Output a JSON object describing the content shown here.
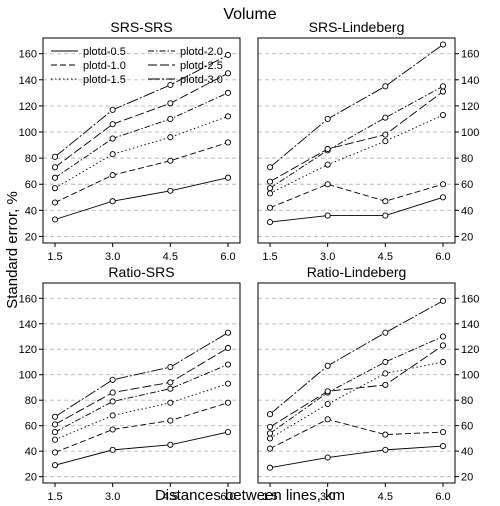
{
  "figure": {
    "title": "Volume",
    "ylabel": "Standard error, %",
    "xlabel": "Distances between lines, km"
  },
  "chart_data": [
    {
      "type": "line",
      "title": "SRS-SRS",
      "x": [
        1.5,
        3.0,
        4.5,
        6.0
      ],
      "xticks": [
        "1.5",
        "3.0",
        "4.5",
        "6.0"
      ],
      "ylim": [
        15,
        172
      ],
      "yticks": [
        20,
        40,
        60,
        80,
        100,
        120,
        140,
        160
      ],
      "y_axis_side": "left",
      "grid": "horizontal dashed",
      "legend": "top-left",
      "series": [
        {
          "name": "plotd-0.5",
          "values": [
            33,
            47,
            55,
            65
          ]
        },
        {
          "name": "plotd-1.0",
          "values": [
            46,
            67,
            78,
            92
          ]
        },
        {
          "name": "plotd-1.5",
          "values": [
            57,
            83,
            96,
            112
          ]
        },
        {
          "name": "plotd-2.0",
          "values": [
            65,
            95,
            110,
            130
          ]
        },
        {
          "name": "plotd-2.5",
          "values": [
            73,
            106,
            122,
            145
          ]
        },
        {
          "name": "plotd-3.0",
          "values": [
            81,
            117,
            136,
            159
          ]
        }
      ]
    },
    {
      "type": "line",
      "title": "SRS-Lindeberg",
      "x": [
        1.5,
        3.0,
        4.5,
        6.0
      ],
      "xticks": [
        "1.5",
        "3.0",
        "4.5",
        "6.0"
      ],
      "ylim": [
        15,
        172
      ],
      "yticks": [
        20,
        40,
        60,
        80,
        100,
        120,
        140,
        160
      ],
      "y_axis_side": "right",
      "grid": "horizontal dashed",
      "series": [
        {
          "name": "plotd-0.5",
          "values": [
            31,
            36,
            36,
            50
          ]
        },
        {
          "name": "plotd-1.0",
          "values": [
            42,
            60,
            47,
            60
          ]
        },
        {
          "name": "plotd-1.5",
          "values": [
            53,
            75,
            93,
            113
          ]
        },
        {
          "name": "plotd-2.0",
          "values": [
            57,
            86,
            111,
            135
          ]
        },
        {
          "name": "plotd-2.5",
          "values": [
            62,
            87,
            98,
            131
          ]
        },
        {
          "name": "plotd-3.0",
          "values": [
            73,
            110,
            135,
            167
          ]
        }
      ]
    },
    {
      "type": "line",
      "title": "Ratio-SRS",
      "x": [
        1.5,
        3.0,
        4.5,
        6.0
      ],
      "xticks": [
        "1.5",
        "3.0",
        "4.5",
        "6.0"
      ],
      "ylim": [
        15,
        172
      ],
      "yticks": [
        20,
        40,
        60,
        80,
        100,
        120,
        140,
        160
      ],
      "y_axis_side": "left",
      "grid": "horizontal dashed",
      "series": [
        {
          "name": "plotd-0.5",
          "values": [
            29,
            41,
            45,
            55
          ]
        },
        {
          "name": "plotd-1.0",
          "values": [
            39,
            57,
            64,
            78
          ]
        },
        {
          "name": "plotd-1.5",
          "values": [
            49,
            68,
            78,
            93
          ]
        },
        {
          "name": "plotd-2.0",
          "values": [
            55,
            79,
            89,
            108
          ]
        },
        {
          "name": "plotd-2.5",
          "values": [
            61,
            86,
            94,
            121
          ]
        },
        {
          "name": "plotd-3.0",
          "values": [
            67,
            96,
            106,
            133
          ]
        }
      ]
    },
    {
      "type": "line",
      "title": "Ratio-Lindeberg",
      "x": [
        1.5,
        3.0,
        4.5,
        6.0
      ],
      "xticks": [
        "1.5",
        "3.0",
        "4.5",
        "6.0"
      ],
      "ylim": [
        15,
        172
      ],
      "yticks": [
        20,
        40,
        60,
        80,
        100,
        120,
        140,
        160
      ],
      "y_axis_side": "right",
      "grid": "horizontal dashed",
      "series": [
        {
          "name": "plotd-0.5",
          "values": [
            27,
            35,
            41,
            44
          ]
        },
        {
          "name": "plotd-1.0",
          "values": [
            42,
            65,
            53,
            55
          ]
        },
        {
          "name": "plotd-1.5",
          "values": [
            50,
            77,
            101,
            110
          ]
        },
        {
          "name": "plotd-2.0",
          "values": [
            54,
            86,
            110,
            130
          ]
        },
        {
          "name": "plotd-2.5",
          "values": [
            59,
            87,
            92,
            123
          ]
        },
        {
          "name": "plotd-3.0",
          "values": [
            69,
            107,
            133,
            158
          ]
        }
      ]
    }
  ]
}
